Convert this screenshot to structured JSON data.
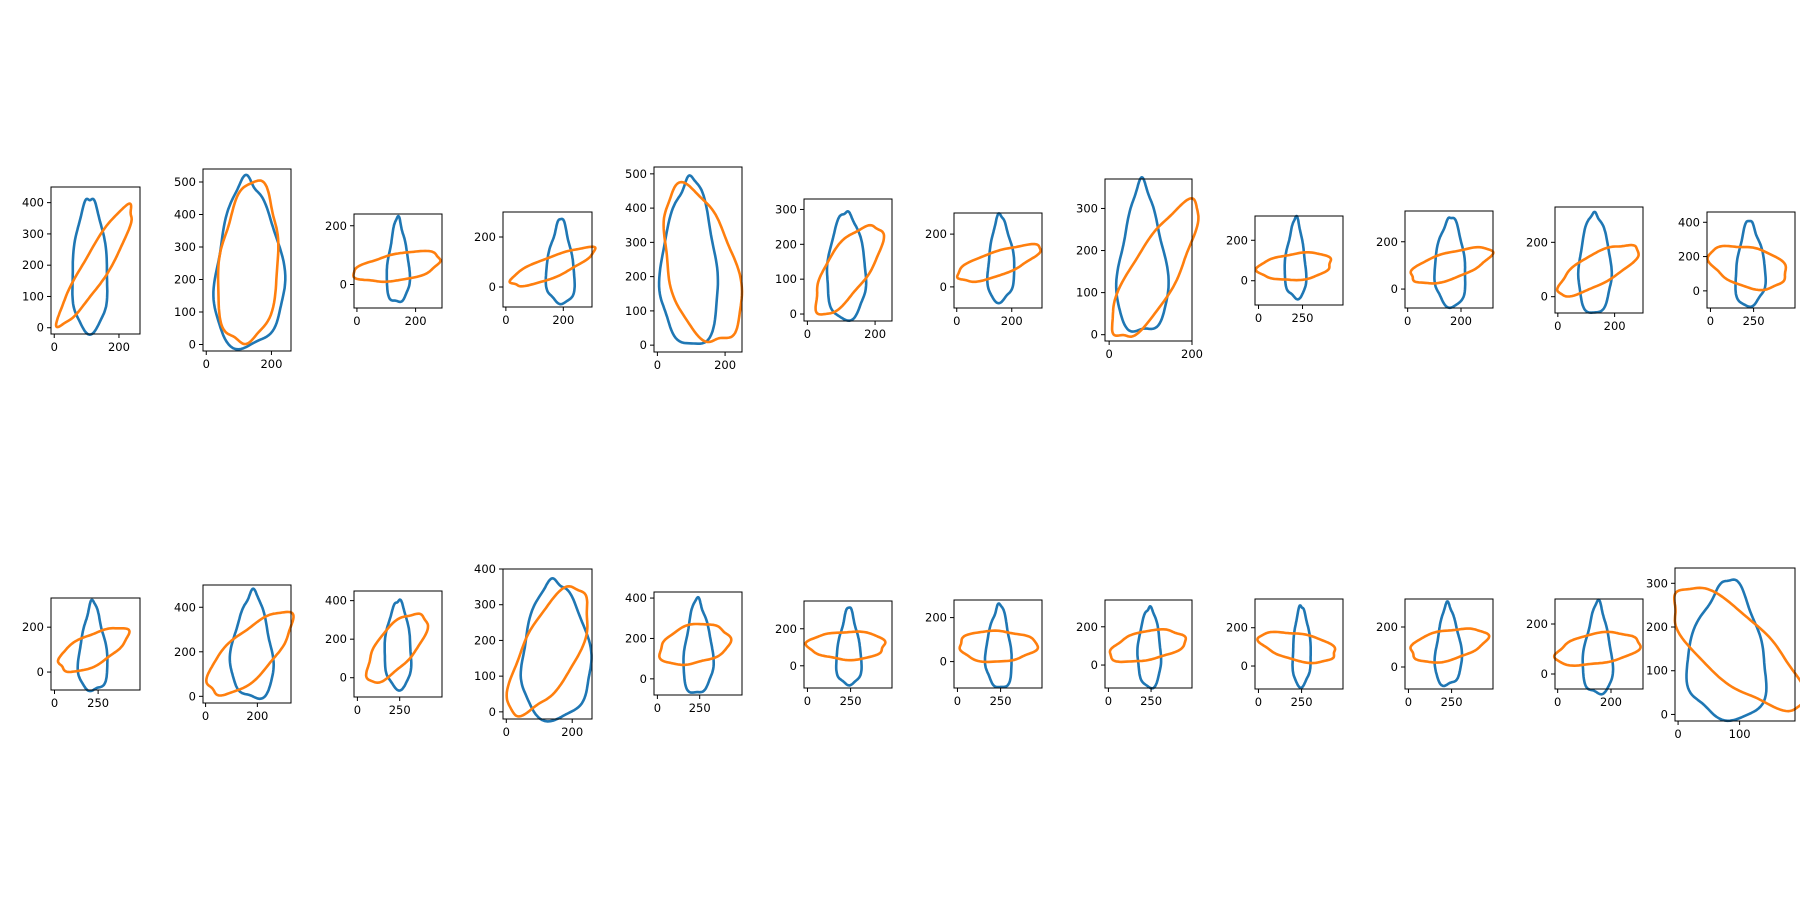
{
  "chart_data": [
    {
      "type": "line",
      "xlim": [
        -10,
        265
      ],
      "ylim": [
        -20,
        450
      ],
      "xticks": [
        0,
        200
      ],
      "yticks": [
        0,
        100,
        200,
        300,
        400
      ],
      "blue": {
        "cx": 110,
        "cy": 210,
        "w": 105,
        "h": 430,
        "rot": 0
      },
      "orange": {
        "cx": 130,
        "cy": 200,
        "w": 80,
        "h": 440,
        "rot": -30
      }
    },
    {
      "type": "line",
      "xlim": [
        -10,
        260
      ],
      "ylim": [
        -20,
        540
      ],
      "xticks": [
        0,
        200
      ],
      "yticks": [
        0,
        100,
        200,
        300,
        400,
        500
      ],
      "blue": {
        "cx": 130,
        "cy": 255,
        "w": 200,
        "h": 520,
        "rot": 0
      },
      "orange": {
        "cx": 130,
        "cy": 245,
        "w": 180,
        "h": 500,
        "rot": -5
      }
    },
    {
      "type": "line",
      "xlim": [
        -10,
        290
      ],
      "ylim": [
        -80,
        240
      ],
      "xticks": [
        0,
        200
      ],
      "yticks": [
        0,
        200
      ],
      "blue": {
        "cx": 140,
        "cy": 80,
        "w": 70,
        "h": 290,
        "rot": 0
      },
      "orange": {
        "cx": 140,
        "cy": 60,
        "w": 300,
        "h": 90,
        "rot": 10
      }
    },
    {
      "type": "line",
      "xlim": [
        -10,
        300
      ],
      "ylim": [
        -80,
        300
      ],
      "xticks": [
        0,
        200
      ],
      "yticks": [
        0,
        200
      ],
      "blue": {
        "cx": 190,
        "cy": 100,
        "w": 90,
        "h": 340,
        "rot": 0
      },
      "orange": {
        "cx": 160,
        "cy": 80,
        "w": 320,
        "h": 80,
        "rot": 25
      }
    },
    {
      "type": "line",
      "xlim": [
        -10,
        250
      ],
      "ylim": [
        -20,
        520
      ],
      "xticks": [
        0,
        200
      ],
      "yticks": [
        0,
        100,
        200,
        300,
        400,
        500
      ],
      "blue": {
        "cx": 95,
        "cy": 250,
        "w": 160,
        "h": 490,
        "rot": 0
      },
      "orange": {
        "cx": 130,
        "cy": 230,
        "w": 200,
        "h": 470,
        "rot": 15
      }
    },
    {
      "type": "line",
      "xlim": [
        -10,
        250
      ],
      "ylim": [
        -20,
        330
      ],
      "xticks": [
        0,
        200
      ],
      "yticks": [
        0,
        100,
        200,
        300
      ],
      "blue": {
        "cx": 115,
        "cy": 145,
        "w": 110,
        "h": 310,
        "rot": 0
      },
      "orange": {
        "cx": 120,
        "cy": 130,
        "w": 120,
        "h": 300,
        "rot": -35
      }
    },
    {
      "type": "line",
      "xlim": [
        -10,
        310
      ],
      "ylim": [
        -80,
        280
      ],
      "xticks": [
        0,
        200
      ],
      "yticks": [
        0,
        200
      ],
      "blue": {
        "cx": 160,
        "cy": 110,
        "w": 90,
        "h": 330,
        "rot": 0
      },
      "orange": {
        "cx": 150,
        "cy": 90,
        "w": 320,
        "h": 90,
        "rot": 20
      }
    },
    {
      "type": "line",
      "xlim": [
        -10,
        200
      ],
      "ylim": [
        -15,
        370
      ],
      "xticks": [
        0,
        200
      ],
      "yticks": [
        0,
        100,
        200,
        300
      ],
      "blue": {
        "cx": 80,
        "cy": 180,
        "w": 110,
        "h": 360,
        "rot": 0
      },
      "orange": {
        "cx": 110,
        "cy": 150,
        "w": 110,
        "h": 370,
        "rot": -30
      }
    },
    {
      "type": "line",
      "xlim": [
        -20,
        480
      ],
      "ylim": [
        -120,
        320
      ],
      "xticks": [
        0,
        250
      ],
      "yticks": [
        0,
        200
      ],
      "blue": {
        "cx": 210,
        "cy": 110,
        "w": 110,
        "h": 400,
        "rot": 0
      },
      "orange": {
        "cx": 210,
        "cy": 70,
        "w": 420,
        "h": 130,
        "rot": 5
      }
    },
    {
      "type": "line",
      "xlim": [
        -10,
        320
      ],
      "ylim": [
        -80,
        330
      ],
      "xticks": [
        0,
        200
      ],
      "yticks": [
        0,
        200
      ],
      "blue": {
        "cx": 160,
        "cy": 120,
        "w": 110,
        "h": 380,
        "rot": 0
      },
      "orange": {
        "cx": 160,
        "cy": 100,
        "w": 320,
        "h": 110,
        "rot": 20
      }
    },
    {
      "type": "line",
      "xlim": [
        -10,
        300
      ],
      "ylim": [
        -60,
        330
      ],
      "xticks": [
        0,
        200
      ],
      "yticks": [
        0,
        200
      ],
      "blue": {
        "cx": 130,
        "cy": 130,
        "w": 110,
        "h": 370,
        "rot": 0
      },
      "orange": {
        "cx": 140,
        "cy": 100,
        "w": 320,
        "h": 110,
        "rot": 30
      }
    },
    {
      "type": "line",
      "xlim": [
        -20,
        490
      ],
      "ylim": [
        -100,
        460
      ],
      "xticks": [
        0,
        250
      ],
      "yticks": [
        0,
        200,
        400
      ],
      "blue": {
        "cx": 230,
        "cy": 160,
        "w": 160,
        "h": 500,
        "rot": 0
      },
      "orange": {
        "cx": 220,
        "cy": 140,
        "w": 460,
        "h": 230,
        "rot": -15
      }
    },
    {
      "type": "line",
      "xlim": [
        -20,
        490
      ],
      "ylim": [
        -80,
        330
      ],
      "xticks": [
        0,
        250
      ],
      "yticks": [
        0,
        200
      ],
      "blue": {
        "cx": 220,
        "cy": 110,
        "w": 150,
        "h": 400,
        "rot": 0
      },
      "orange": {
        "cx": 220,
        "cy": 100,
        "w": 420,
        "h": 140,
        "rot": 20
      }
    },
    {
      "type": "line",
      "xlim": [
        -10,
        330
      ],
      "ylim": [
        -30,
        500
      ],
      "xticks": [
        0,
        200
      ],
      "yticks": [
        0,
        200,
        400
      ],
      "blue": {
        "cx": 180,
        "cy": 230,
        "w": 150,
        "h": 480,
        "rot": 0
      },
      "orange": {
        "cx": 170,
        "cy": 190,
        "w": 180,
        "h": 460,
        "rot": -40
      }
    },
    {
      "type": "line",
      "xlim": [
        -20,
        500
      ],
      "ylim": [
        -100,
        450
      ],
      "xticks": [
        0,
        250
      ],
      "yticks": [
        0,
        200,
        400
      ],
      "blue": {
        "cx": 240,
        "cy": 180,
        "w": 150,
        "h": 460,
        "rot": 0
      },
      "orange": {
        "cx": 230,
        "cy": 160,
        "w": 200,
        "h": 460,
        "rot": -45
      }
    },
    {
      "type": "line",
      "xlim": [
        -10,
        260
      ],
      "ylim": [
        -20,
        400
      ],
      "xticks": [
        0,
        200
      ],
      "yticks": [
        0,
        100,
        200,
        300,
        400
      ],
      "blue": {
        "cx": 150,
        "cy": 180,
        "w": 200,
        "h": 390,
        "rot": 0
      },
      "orange": {
        "cx": 130,
        "cy": 170,
        "w": 160,
        "h": 400,
        "rot": -30
      }
    },
    {
      "type": "line",
      "xlim": [
        -20,
        500
      ],
      "ylim": [
        -80,
        430
      ],
      "xticks": [
        0,
        250
      ],
      "yticks": [
        0,
        200,
        400
      ],
      "blue": {
        "cx": 240,
        "cy": 160,
        "w": 160,
        "h": 470,
        "rot": 0
      },
      "orange": {
        "cx": 220,
        "cy": 170,
        "w": 420,
        "h": 190,
        "rot": 10
      }
    },
    {
      "type": "line",
      "xlim": [
        -20,
        490
      ],
      "ylim": [
        -120,
        350
      ],
      "xticks": [
        0,
        250
      ],
      "yticks": [
        0,
        200
      ],
      "blue": {
        "cx": 240,
        "cy": 100,
        "w": 130,
        "h": 420,
        "rot": 0
      },
      "orange": {
        "cx": 230,
        "cy": 110,
        "w": 450,
        "h": 150,
        "rot": 0
      }
    },
    {
      "type": "line",
      "xlim": [
        -20,
        490
      ],
      "ylim": [
        -120,
        280
      ],
      "xticks": [
        0,
        250
      ],
      "yticks": [
        0,
        200
      ],
      "blue": {
        "cx": 240,
        "cy": 70,
        "w": 140,
        "h": 380,
        "rot": 0
      },
      "orange": {
        "cx": 230,
        "cy": 70,
        "w": 450,
        "h": 140,
        "rot": 0
      }
    },
    {
      "type": "line",
      "xlim": [
        -20,
        490
      ],
      "ylim": [
        -120,
        340
      ],
      "xticks": [
        0,
        250
      ],
      "yticks": [
        0,
        200
      ],
      "blue": {
        "cx": 240,
        "cy": 100,
        "w": 130,
        "h": 420,
        "rot": 0
      },
      "orange": {
        "cx": 230,
        "cy": 100,
        "w": 450,
        "h": 150,
        "rot": 10
      }
    },
    {
      "type": "line",
      "xlim": [
        -20,
        490
      ],
      "ylim": [
        -120,
        350
      ],
      "xticks": [
        0,
        250
      ],
      "yticks": [
        0,
        200
      ],
      "blue": {
        "cx": 250,
        "cy": 110,
        "w": 100,
        "h": 420,
        "rot": 0
      },
      "orange": {
        "cx": 230,
        "cy": 100,
        "w": 450,
        "h": 140,
        "rot": -10
      }
    },
    {
      "type": "line",
      "xlim": [
        -20,
        490
      ],
      "ylim": [
        -110,
        340
      ],
      "xticks": [
        0,
        250
      ],
      "yticks": [
        0,
        200
      ],
      "blue": {
        "cx": 230,
        "cy": 110,
        "w": 140,
        "h": 410,
        "rot": 0
      },
      "orange": {
        "cx": 230,
        "cy": 110,
        "w": 450,
        "h": 150,
        "rot": 10
      }
    },
    {
      "type": "line",
      "xlim": [
        -10,
        320
      ],
      "ylim": [
        -60,
        300
      ],
      "xticks": [
        0,
        200
      ],
      "yticks": [
        0,
        200
      ],
      "blue": {
        "cx": 150,
        "cy": 100,
        "w": 100,
        "h": 370,
        "rot": 0
      },
      "orange": {
        "cx": 150,
        "cy": 100,
        "w": 320,
        "h": 120,
        "rot": 10
      }
    },
    {
      "type": "line",
      "xlim": [
        -5,
        190
      ],
      "ylim": [
        -15,
        335
      ],
      "xticks": [
        0,
        100
      ],
      "yticks": [
        0,
        100,
        200,
        300
      ],
      "blue": {
        "cx": 80,
        "cy": 150,
        "w": 120,
        "h": 320,
        "rot": 0
      },
      "orange": {
        "cx": 95,
        "cy": 150,
        "w": 120,
        "h": 330,
        "rot": 35
      }
    }
  ],
  "colors": {
    "blue": "#1f77b4",
    "orange": "#ff7f0e",
    "axes": "#000000"
  }
}
